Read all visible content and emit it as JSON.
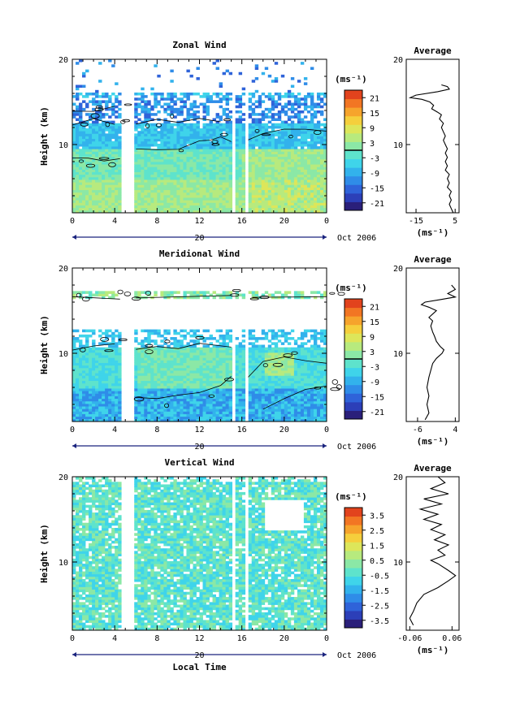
{
  "figure": {
    "x_axis_title": "Local Time",
    "date_label": "Oct 2006",
    "day_label": "20",
    "y_axis_title": "Height (km)",
    "units": "(ms⁻¹)",
    "average_title": "Average"
  },
  "colormap": [
    "#2a1f7a",
    "#2c3fb8",
    "#2f63d9",
    "#2f8ce8",
    "#32b2ec",
    "#3fd4ea",
    "#5ee3cc",
    "#8be8a6",
    "#b7ea7e",
    "#dde65a",
    "#f5cf3c",
    "#f6a42c",
    "#f27623",
    "#e2431d"
  ],
  "chart_data": [
    {
      "type": "heatmap",
      "title": "Zonal Wind",
      "ylabel": "Height (km)",
      "xlabel": "",
      "xticks": [
        "0",
        "4",
        "8",
        "12",
        "16",
        "20",
        "0"
      ],
      "yticks": [
        "20",
        "10"
      ],
      "x_range_hours": [
        0,
        24
      ],
      "y_range_km": [
        2,
        20
      ],
      "gaps_hours": [
        [
          4.6,
          5.9
        ],
        [
          15.2,
          15.5
        ],
        [
          16.3,
          16.6
        ]
      ],
      "colorbar": {
        "units": "(ms⁻¹)",
        "ticks": [
          "21",
          "15",
          "9",
          "3",
          "-3",
          "-9",
          "-15",
          "-21"
        ],
        "range": [
          -24,
          24
        ],
        "contour": 0
      },
      "average_profile": {
        "title": "Average",
        "xlim": [
          -20,
          7
        ],
        "xticks": [
          "-15",
          "5"
        ],
        "xlabel": "(ms⁻¹)",
        "yticks": [
          "20",
          "10"
        ],
        "points": [
          [
            -2,
            17.0
          ],
          [
            1,
            16.8
          ],
          [
            2,
            16.5
          ],
          [
            -4,
            16.2
          ],
          [
            -15,
            15.8
          ],
          [
            -18,
            15.5
          ],
          [
            -12,
            15.3
          ],
          [
            -8,
            15.0
          ],
          [
            -6,
            14.6
          ],
          [
            -7,
            14.2
          ],
          [
            -4,
            13.8
          ],
          [
            -2,
            13.5
          ],
          [
            -3,
            13.0
          ],
          [
            -1,
            12.5
          ],
          [
            -2,
            12.0
          ],
          [
            -1,
            11.5
          ],
          [
            0,
            11.0
          ],
          [
            -1,
            10.5
          ],
          [
            0,
            10.0
          ],
          [
            1,
            9.5
          ],
          [
            0,
            9.0
          ],
          [
            1,
            8.5
          ],
          [
            0,
            8.0
          ],
          [
            1,
            7.5
          ],
          [
            0,
            7.0
          ],
          [
            2,
            6.5
          ],
          [
            1,
            6.0
          ],
          [
            2,
            5.5
          ],
          [
            1,
            5.0
          ],
          [
            3,
            4.5
          ],
          [
            2,
            4.0
          ],
          [
            3,
            3.5
          ],
          [
            2,
            3.0
          ],
          [
            3,
            2.5
          ],
          [
            4,
            2.0
          ]
        ]
      }
    },
    {
      "type": "heatmap",
      "title": "Meridional Wind",
      "ylabel": "Height (km)",
      "xlabel": "",
      "xticks": [
        "0",
        "4",
        "8",
        "12",
        "16",
        "20",
        "0"
      ],
      "yticks": [
        "20",
        "10"
      ],
      "x_range_hours": [
        0,
        24
      ],
      "y_range_km": [
        2,
        20
      ],
      "gaps_hours": [
        [
          4.6,
          5.9
        ],
        [
          15.2,
          15.5
        ],
        [
          16.3,
          16.6
        ]
      ],
      "colorbar": {
        "units": "(ms⁻¹)",
        "ticks": [
          "21",
          "15",
          "9",
          "3",
          "-3",
          "-9",
          "-15",
          "-21"
        ],
        "range": [
          -24,
          24
        ],
        "contour": 0
      },
      "average_profile": {
        "title": "Average",
        "xlim": [
          -9,
          5
        ],
        "xticks": [
          "-6",
          "4"
        ],
        "xlabel": "(ms⁻¹)",
        "yticks": [
          "20",
          "10"
        ],
        "points": [
          [
            3,
            18.0
          ],
          [
            4,
            17.5
          ],
          [
            2,
            17.0
          ],
          [
            4,
            16.6
          ],
          [
            0,
            16.3
          ],
          [
            -4,
            16.0
          ],
          [
            -5,
            15.7
          ],
          [
            -3,
            15.4
          ],
          [
            -1,
            15.0
          ],
          [
            -2,
            14.6
          ],
          [
            -3,
            14.2
          ],
          [
            -2,
            13.8
          ],
          [
            -2.5,
            13.2
          ],
          [
            -2,
            12.5
          ],
          [
            -1.5,
            12.0
          ],
          [
            -1,
            11.4
          ],
          [
            0,
            10.8
          ],
          [
            1,
            10.4
          ],
          [
            0.5,
            10.0
          ],
          [
            -1,
            9.4
          ],
          [
            -2,
            8.8
          ],
          [
            -2.5,
            8.0
          ],
          [
            -3,
            7.2
          ],
          [
            -3.5,
            6.0
          ],
          [
            -3,
            5.0
          ],
          [
            -3.5,
            4.0
          ],
          [
            -3,
            3.0
          ],
          [
            -4,
            2.2
          ]
        ]
      }
    },
    {
      "type": "heatmap",
      "title": "Vertical Wind",
      "ylabel": "Height (km)",
      "xlabel": "Local Time",
      "xticks": [
        "0",
        "4",
        "8",
        "12",
        "16",
        "20",
        "0"
      ],
      "yticks": [
        "20",
        "10"
      ],
      "x_range_hours": [
        0,
        24
      ],
      "y_range_km": [
        2,
        20
      ],
      "gaps_hours": [
        [
          4.6,
          5.9
        ],
        [
          15.2,
          15.5
        ],
        [
          16.3,
          16.6
        ]
      ],
      "colorbar": {
        "units": "(ms⁻¹)",
        "ticks": [
          "3.5",
          "2.5",
          "1.5",
          "0.5",
          "-0.5",
          "-1.5",
          "-2.5",
          "-3.5"
        ],
        "range": [
          -4,
          4
        ]
      },
      "average_profile": {
        "title": "Average",
        "xlim": [
          -0.07,
          0.08
        ],
        "xticks": [
          "-0.06",
          "0.06"
        ],
        "xlabel": "(ms⁻¹)",
        "yticks": [
          "20",
          "10"
        ],
        "points": [
          [
            0.02,
            20.0
          ],
          [
            0.04,
            19.3
          ],
          [
            0.0,
            18.6
          ],
          [
            0.05,
            18.0
          ],
          [
            -0.02,
            17.4
          ],
          [
            0.03,
            16.8
          ],
          [
            -0.03,
            16.2
          ],
          [
            0.02,
            15.6
          ],
          [
            -0.02,
            15.0
          ],
          [
            0.03,
            14.4
          ],
          [
            0.0,
            13.8
          ],
          [
            0.04,
            13.2
          ],
          [
            0.01,
            12.6
          ],
          [
            0.05,
            12.0
          ],
          [
            0.02,
            11.4
          ],
          [
            0.04,
            10.8
          ],
          [
            0.0,
            10.2
          ],
          [
            0.02,
            9.8
          ],
          [
            0.05,
            9.0
          ],
          [
            0.07,
            8.4
          ],
          [
            0.05,
            7.8
          ],
          [
            0.02,
            7.0
          ],
          [
            -0.02,
            6.2
          ],
          [
            -0.04,
            5.2
          ],
          [
            -0.05,
            4.2
          ],
          [
            -0.06,
            3.4
          ],
          [
            -0.05,
            2.6
          ]
        ]
      }
    }
  ]
}
